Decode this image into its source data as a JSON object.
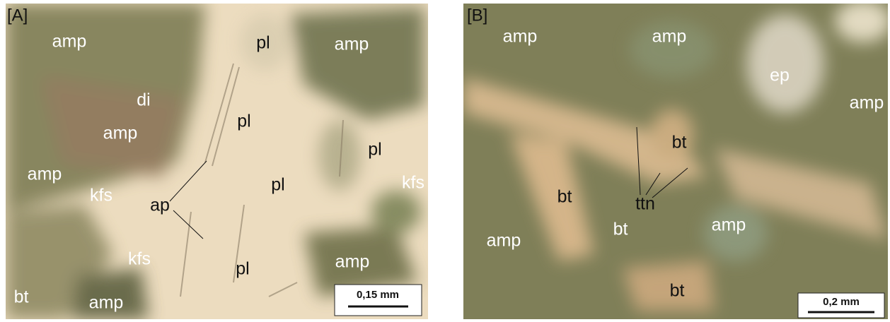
{
  "panels": [
    {
      "label": "[A]",
      "scale_bar": "0,15 mm",
      "annotations": [
        "amp",
        "pl",
        "amp",
        "di",
        "amp",
        "pl",
        "pl",
        "amp",
        "pl",
        "kfs",
        "kfs",
        "ap",
        "kfs",
        "pl",
        "amp",
        "bt",
        "amp"
      ]
    },
    {
      "label": "[B]",
      "scale_bar": "0,2 mm",
      "annotations": [
        "amp",
        "amp",
        "ep",
        "amp",
        "bt",
        "bt",
        "ttn",
        "bt",
        "amp",
        "amp",
        "bt"
      ]
    }
  ]
}
